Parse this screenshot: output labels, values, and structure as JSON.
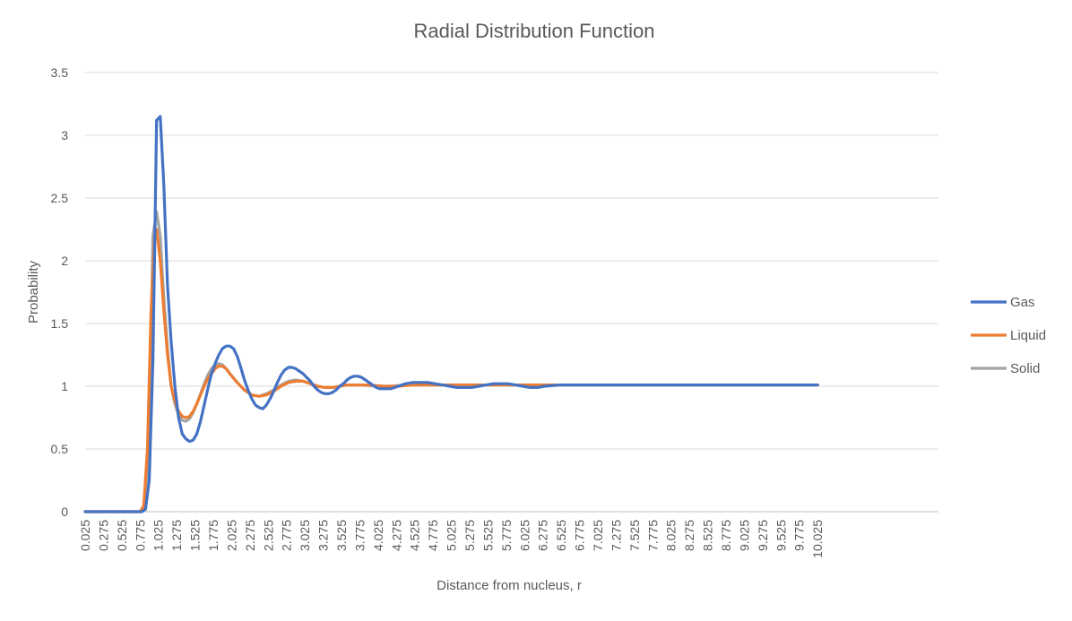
{
  "chart_data": {
    "type": "line",
    "title": "Radial Distribution Function",
    "xlabel": "Distance from nucleus, r",
    "ylabel": "Probability",
    "ylim": [
      0,
      3.5
    ],
    "yticks": [
      "0",
      "0.5",
      "1",
      "1.5",
      "2",
      "2.5",
      "3",
      "3.5"
    ],
    "xticks": [
      "0.025",
      "0.275",
      "0.525",
      "0.775",
      "1.025",
      "1.275",
      "1.525",
      "1.775",
      "2.025",
      "2.275",
      "2.525",
      "2.775",
      "3.025",
      "3.275",
      "3.525",
      "3.775",
      "4.025",
      "4.275",
      "4.525",
      "4.775",
      "5.025",
      "5.275",
      "5.525",
      "5.775",
      "6.025",
      "6.275",
      "6.525",
      "6.775",
      "7.025",
      "7.275",
      "7.525",
      "7.775",
      "8.025",
      "8.275",
      "8.525",
      "8.775",
      "9.025",
      "9.275",
      "9.525",
      "9.775",
      "10.025"
    ],
    "x_range": [
      0.025,
      11.675
    ],
    "grid": true,
    "legend_position": "right",
    "series": [
      {
        "name": "Gas",
        "color": "#4472C4",
        "points": [
          [
            0.025,
            0
          ],
          [
            0.8,
            0
          ],
          [
            0.85,
            0.02
          ],
          [
            0.9,
            0.25
          ],
          [
            0.95,
            1.2
          ],
          [
            0.975,
            2.1
          ],
          [
            1.0,
            3.12
          ],
          [
            1.05,
            3.15
          ],
          [
            1.1,
            2.6
          ],
          [
            1.15,
            1.8
          ],
          [
            1.2,
            1.35
          ],
          [
            1.25,
            1.0
          ],
          [
            1.3,
            0.75
          ],
          [
            1.35,
            0.62
          ],
          [
            1.4,
            0.58
          ],
          [
            1.45,
            0.56
          ],
          [
            1.5,
            0.57
          ],
          [
            1.55,
            0.62
          ],
          [
            1.6,
            0.72
          ],
          [
            1.65,
            0.85
          ],
          [
            1.7,
            0.98
          ],
          [
            1.75,
            1.1
          ],
          [
            1.8,
            1.18
          ],
          [
            1.85,
            1.25
          ],
          [
            1.9,
            1.3
          ],
          [
            1.95,
            1.32
          ],
          [
            2.0,
            1.32
          ],
          [
            2.05,
            1.3
          ],
          [
            2.1,
            1.24
          ],
          [
            2.15,
            1.15
          ],
          [
            2.2,
            1.05
          ],
          [
            2.25,
            0.97
          ],
          [
            2.3,
            0.9
          ],
          [
            2.35,
            0.85
          ],
          [
            2.4,
            0.83
          ],
          [
            2.45,
            0.82
          ],
          [
            2.5,
            0.85
          ],
          [
            2.55,
            0.9
          ],
          [
            2.6,
            0.96
          ],
          [
            2.65,
            1.03
          ],
          [
            2.7,
            1.09
          ],
          [
            2.75,
            1.13
          ],
          [
            2.8,
            1.15
          ],
          [
            2.85,
            1.15
          ],
          [
            2.9,
            1.14
          ],
          [
            2.95,
            1.12
          ],
          [
            3.0,
            1.1
          ],
          [
            3.05,
            1.07
          ],
          [
            3.1,
            1.04
          ],
          [
            3.15,
            1.0
          ],
          [
            3.2,
            0.97
          ],
          [
            3.25,
            0.95
          ],
          [
            3.3,
            0.94
          ],
          [
            3.35,
            0.94
          ],
          [
            3.4,
            0.95
          ],
          [
            3.45,
            0.97
          ],
          [
            3.5,
            1.0
          ],
          [
            3.55,
            1.02
          ],
          [
            3.6,
            1.05
          ],
          [
            3.65,
            1.07
          ],
          [
            3.7,
            1.08
          ],
          [
            3.75,
            1.08
          ],
          [
            3.8,
            1.07
          ],
          [
            3.85,
            1.05
          ],
          [
            3.9,
            1.03
          ],
          [
            3.95,
            1.01
          ],
          [
            4.0,
            0.99
          ],
          [
            4.05,
            0.98
          ],
          [
            4.1,
            0.98
          ],
          [
            4.2,
            0.98
          ],
          [
            4.3,
            1.0
          ],
          [
            4.4,
            1.02
          ],
          [
            4.5,
            1.03
          ],
          [
            4.6,
            1.03
          ],
          [
            4.7,
            1.03
          ],
          [
            4.8,
            1.02
          ],
          [
            4.9,
            1.01
          ],
          [
            5.0,
            1.0
          ],
          [
            5.1,
            0.99
          ],
          [
            5.3,
            0.99
          ],
          [
            5.4,
            1.0
          ],
          [
            5.5,
            1.01
          ],
          [
            5.6,
            1.02
          ],
          [
            5.7,
            1.02
          ],
          [
            5.8,
            1.02
          ],
          [
            5.9,
            1.01
          ],
          [
            6.0,
            1.0
          ],
          [
            6.1,
            0.99
          ],
          [
            6.2,
            0.99
          ],
          [
            6.3,
            1.0
          ],
          [
            6.5,
            1.01
          ],
          [
            10.025,
            1.01
          ]
        ]
      },
      {
        "name": "Liquid",
        "color": "#ED7D31",
        "points": [
          [
            0.025,
            0
          ],
          [
            0.775,
            0
          ],
          [
            0.825,
            0.05
          ],
          [
            0.875,
            0.5
          ],
          [
            0.925,
            1.6
          ],
          [
            0.975,
            2.2
          ],
          [
            1.0,
            2.25
          ],
          [
            1.05,
            2.0
          ],
          [
            1.1,
            1.6
          ],
          [
            1.15,
            1.25
          ],
          [
            1.2,
            1.0
          ],
          [
            1.25,
            0.88
          ],
          [
            1.3,
            0.8
          ],
          [
            1.35,
            0.76
          ],
          [
            1.4,
            0.75
          ],
          [
            1.45,
            0.76
          ],
          [
            1.5,
            0.8
          ],
          [
            1.55,
            0.86
          ],
          [
            1.6,
            0.93
          ],
          [
            1.65,
            1.0
          ],
          [
            1.7,
            1.06
          ],
          [
            1.75,
            1.1
          ],
          [
            1.8,
            1.14
          ],
          [
            1.85,
            1.16
          ],
          [
            1.9,
            1.16
          ],
          [
            1.95,
            1.14
          ],
          [
            2.0,
            1.1
          ],
          [
            2.1,
            1.03
          ],
          [
            2.2,
            0.97
          ],
          [
            2.3,
            0.93
          ],
          [
            2.4,
            0.92
          ],
          [
            2.5,
            0.93
          ],
          [
            2.6,
            0.96
          ],
          [
            2.7,
            1.0
          ],
          [
            2.8,
            1.03
          ],
          [
            2.9,
            1.04
          ],
          [
            3.0,
            1.04
          ],
          [
            3.1,
            1.02
          ],
          [
            3.2,
            1.0
          ],
          [
            3.3,
            0.99
          ],
          [
            3.4,
            0.99
          ],
          [
            3.5,
            1.0
          ],
          [
            3.6,
            1.01
          ],
          [
            3.7,
            1.01
          ],
          [
            3.9,
            1.01
          ],
          [
            4.1,
            1.0
          ],
          [
            4.3,
            1.0
          ],
          [
            4.5,
            1.01
          ],
          [
            10.025,
            1.01
          ]
        ]
      },
      {
        "name": "Solid",
        "color": "#A5A5A5",
        "points": [
          [
            0.025,
            0
          ],
          [
            0.8,
            0
          ],
          [
            0.85,
            0.05
          ],
          [
            0.9,
            0.6
          ],
          [
            0.95,
            2.2
          ],
          [
            1.0,
            2.39
          ],
          [
            1.05,
            2.2
          ],
          [
            1.1,
            1.7
          ],
          [
            1.15,
            1.3
          ],
          [
            1.2,
            1.0
          ],
          [
            1.25,
            0.86
          ],
          [
            1.3,
            0.77
          ],
          [
            1.35,
            0.73
          ],
          [
            1.4,
            0.72
          ],
          [
            1.45,
            0.74
          ],
          [
            1.5,
            0.79
          ],
          [
            1.55,
            0.86
          ],
          [
            1.6,
            0.94
          ],
          [
            1.65,
            1.02
          ],
          [
            1.7,
            1.09
          ],
          [
            1.75,
            1.14
          ],
          [
            1.8,
            1.17
          ],
          [
            1.85,
            1.18
          ],
          [
            1.9,
            1.17
          ],
          [
            1.95,
            1.14
          ],
          [
            2.0,
            1.1
          ],
          [
            2.1,
            1.03
          ],
          [
            2.2,
            0.97
          ],
          [
            2.3,
            0.93
          ],
          [
            2.4,
            0.92
          ],
          [
            2.5,
            0.94
          ],
          [
            2.6,
            0.97
          ],
          [
            2.7,
            1.01
          ],
          [
            2.8,
            1.04
          ],
          [
            2.9,
            1.05
          ],
          [
            3.0,
            1.04
          ],
          [
            3.1,
            1.02
          ],
          [
            3.2,
            1.0
          ],
          [
            3.3,
            0.99
          ],
          [
            3.4,
            0.99
          ],
          [
            3.5,
            1.0
          ],
          [
            3.6,
            1.01
          ],
          [
            3.8,
            1.01
          ],
          [
            4.0,
            1.0
          ],
          [
            4.2,
            1.0
          ],
          [
            4.4,
            1.01
          ],
          [
            10.025,
            1.01
          ]
        ]
      }
    ]
  }
}
